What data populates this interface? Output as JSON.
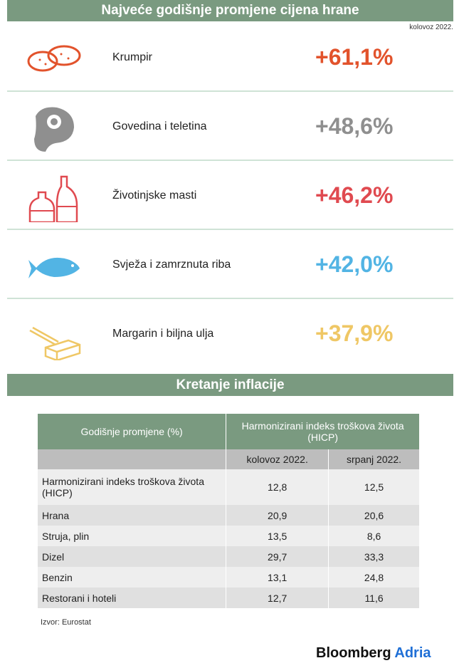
{
  "header": {
    "title": "Najveće godišnje promjene cijena hrane",
    "date": "kolovoz 2022."
  },
  "items": [
    {
      "label": "Krumpir",
      "value": "+61,1%",
      "color": "#e2532c"
    },
    {
      "label": "Govedina i teletina",
      "value": "+48,6%",
      "color": "#8f8f8f"
    },
    {
      "label": "Životinjske masti",
      "value": "+46,2%",
      "color": "#e04a50"
    },
    {
      "label": "Svježa i zamrznuta riba",
      "value": "+42,0%",
      "color": "#52b4e4"
    },
    {
      "label": "Margarin i biljna ulja",
      "value": "+37,9%",
      "color": "#efc765"
    }
  ],
  "section": {
    "title": "Kretanje inflacije"
  },
  "table": {
    "header": [
      "Godišnje promjene (%)",
      "Harmonizirani indeks troškova života (HICP)"
    ],
    "subheader": [
      "kolovoz 2022.",
      "srpanj 2022."
    ],
    "rows": [
      [
        "Harmonizirani indeks troškova života (HICP)",
        "12,8",
        "12,5"
      ],
      [
        "Hrana",
        "20,9",
        "20,6"
      ],
      [
        "Struja, plin",
        "13,5",
        "8,6"
      ],
      [
        "Dizel",
        "29,7",
        "33,3"
      ],
      [
        "Benzin",
        "13,1",
        "24,8"
      ],
      [
        "Restorani i hoteli",
        "12,7",
        "11,6"
      ]
    ]
  },
  "footer": {
    "source": "Izvor: Eurostat",
    "brand": [
      "Bloomberg",
      "Adria"
    ]
  }
}
